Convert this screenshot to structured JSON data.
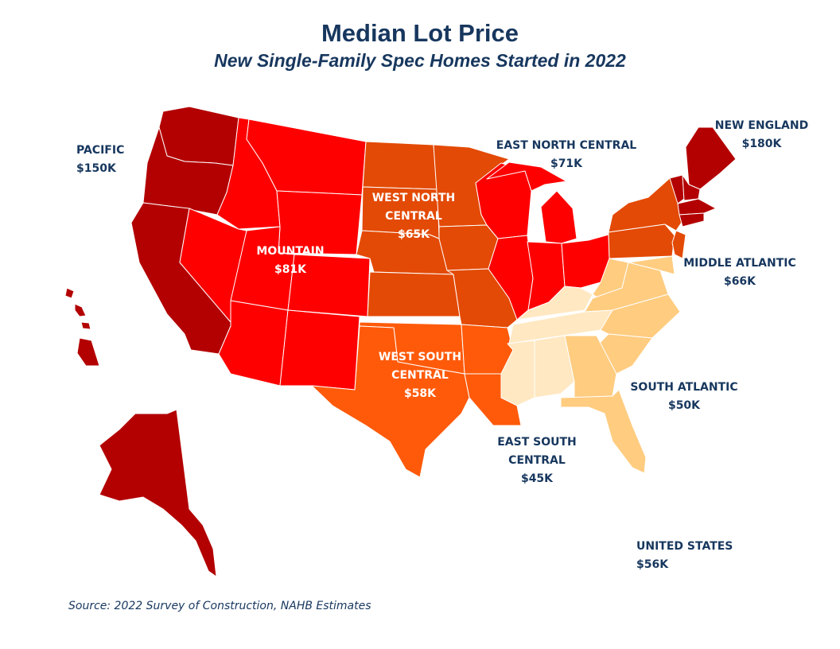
{
  "title": "Median Lot Price",
  "subtitle": "New Single-Family Spec Homes Started in 2022",
  "source": "Source: 2022 Survey of Construction, NAHB Estimates",
  "colors": {
    "title": "#17375e",
    "pacific": "#b30000",
    "new_england": "#b30000",
    "mountain": "#ff0000",
    "east_north_central": "#ff0000",
    "west_north_central": "#e34a05",
    "middle_atlantic": "#e34a05",
    "west_south_central": "#ff5a0a",
    "south_atlantic": "#ffcc80",
    "east_south_central": "#ffe8c2"
  },
  "regions": {
    "pacific": {
      "line1": "PACIFIC",
      "value": "$150K"
    },
    "mountain": {
      "line1": "MOUNTAIN",
      "value": "$81K"
    },
    "west_north_central": {
      "line1": "WEST NORTH",
      "line2": "CENTRAL",
      "value": "$65K"
    },
    "east_north_central": {
      "line1": "EAST NORTH CENTRAL",
      "value": "$71K"
    },
    "new_england": {
      "line1": "NEW ENGLAND",
      "value": "$180K"
    },
    "middle_atlantic": {
      "line1": "MIDDLE ATLANTIC",
      "value": "$66K"
    },
    "south_atlantic": {
      "line1": "SOUTH ATLANTIC",
      "value": "$50K"
    },
    "east_south_central": {
      "line1": "EAST SOUTH",
      "line2": "CENTRAL",
      "value": "$45K"
    },
    "west_south_central": {
      "line1": "WEST SOUTH",
      "line2": "CENTRAL",
      "value": "$58K"
    },
    "united_states": {
      "line1": "UNITED STATES",
      "value": "$56K"
    }
  }
}
